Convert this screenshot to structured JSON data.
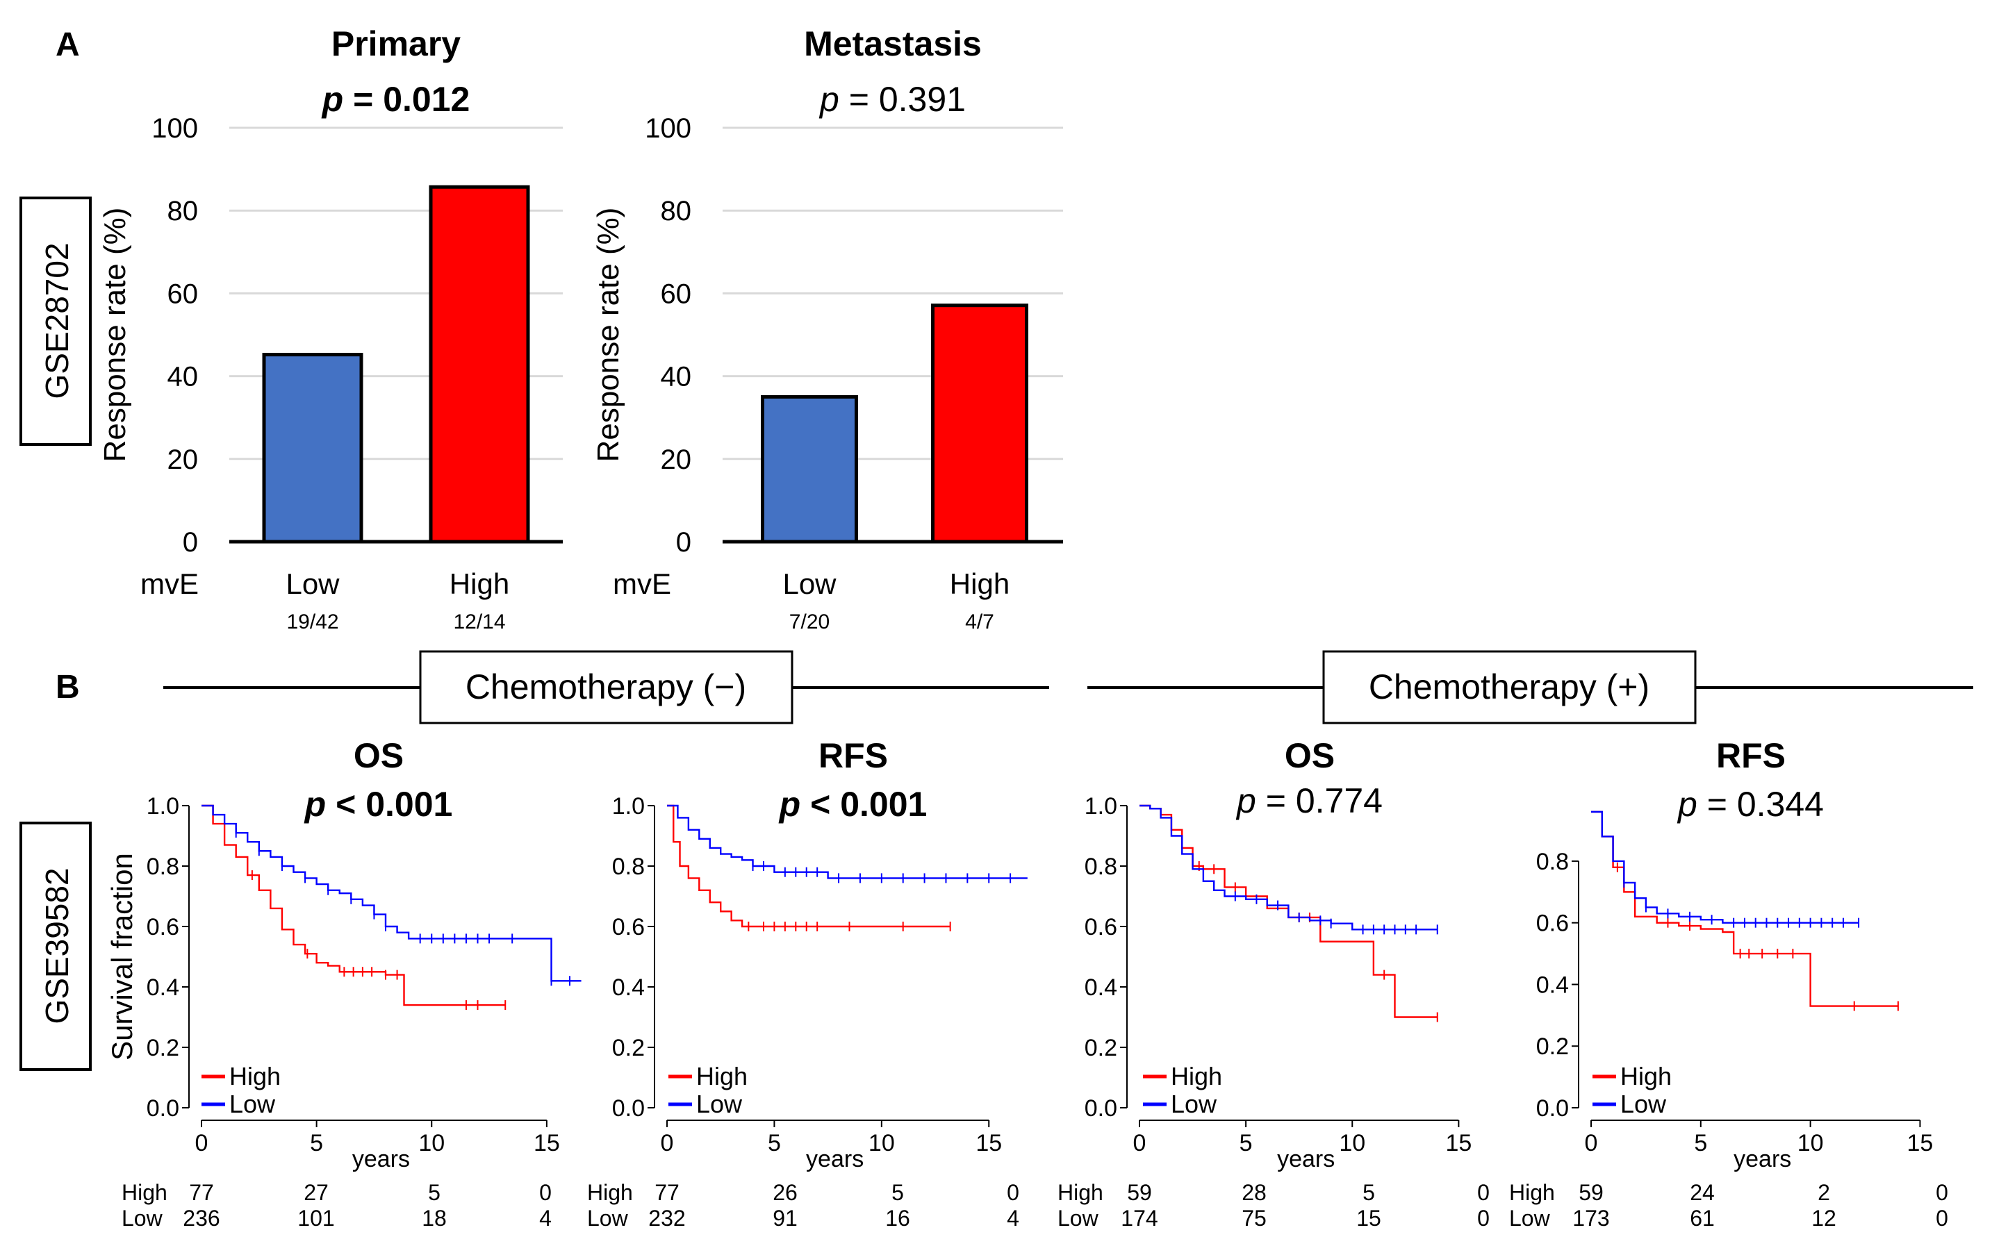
{
  "panel_a": {
    "label": "A",
    "dataset": "GSE28702",
    "group_label": "mvE"
  },
  "panel_b": {
    "label": "B",
    "dataset": "GSE39582",
    "chemo_minus": "Chemotherapy (−)",
    "chemo_plus": "Chemotherapy (+)",
    "risk_high": "High",
    "risk_low": "Low"
  },
  "chart_data": [
    {
      "id": "a1",
      "type": "bar",
      "title": "Primary",
      "p_prefix": "p",
      "p_text": " = 0.012",
      "p_bold": true,
      "ylabel": "Response rate (%)",
      "ylim": [
        0,
        100
      ],
      "yticks": [
        "0",
        "20",
        "40",
        "60",
        "80",
        "100"
      ],
      "categories": [
        "Low",
        "High"
      ],
      "fractions": [
        "19/42",
        "12/14"
      ],
      "values": [
        45.2,
        85.7
      ],
      "colors": [
        "#4472c4",
        "#ff0000"
      ]
    },
    {
      "id": "a2",
      "type": "bar",
      "title": "Metastasis",
      "p_prefix": "p",
      "p_text": " = 0.391",
      "p_bold": false,
      "ylabel": "Response rate (%)",
      "ylim": [
        0,
        100
      ],
      "yticks": [
        "0",
        "20",
        "40",
        "60",
        "80",
        "100"
      ],
      "categories": [
        "Low",
        "High"
      ],
      "fractions": [
        "7/20",
        "4/7"
      ],
      "values": [
        35.0,
        57.1
      ],
      "colors": [
        "#4472c4",
        "#ff0000"
      ]
    },
    {
      "id": "b1",
      "type": "line",
      "title": "OS",
      "p_prefix": "p",
      "p_text": " < 0.001",
      "p_bold": true,
      "ylabel": "Survival fraction",
      "xlabel": "years",
      "xlim": [
        0,
        16
      ],
      "ylim": [
        0,
        1
      ],
      "xticks": [
        "0",
        "5",
        "10",
        "15"
      ],
      "yticks": [
        "0.0",
        "0.2",
        "0.4",
        "0.6",
        "0.8",
        "1.0"
      ],
      "legend": [
        "High",
        "Low"
      ],
      "series": [
        {
          "name": "High",
          "color": "#ff0000",
          "x": [
            0,
            0.5,
            1,
            1.5,
            2,
            2.5,
            3,
            3.5,
            4,
            4.5,
            5,
            5.5,
            6,
            7,
            8,
            8.8,
            8.8,
            13.2
          ],
          "y": [
            1.0,
            0.94,
            0.87,
            0.83,
            0.77,
            0.72,
            0.66,
            0.59,
            0.54,
            0.51,
            0.48,
            0.47,
            0.45,
            0.45,
            0.44,
            0.44,
            0.34,
            0.34
          ],
          "censor_x": [
            2.2,
            4.6,
            6.2,
            6.6,
            7.0,
            7.4,
            8.0,
            8.5,
            11.5,
            12.0,
            13.2
          ]
        },
        {
          "name": "Low",
          "color": "#0000ff",
          "x": [
            0,
            0.5,
            1,
            1.5,
            2,
            2.5,
            3,
            3.5,
            4,
            4.5,
            5,
            5.5,
            6,
            6.5,
            7,
            7.5,
            8,
            8.5,
            9,
            14.5,
            15.2,
            15.2,
            16.5
          ],
          "y": [
            1.0,
            0.97,
            0.94,
            0.91,
            0.88,
            0.85,
            0.83,
            0.8,
            0.78,
            0.76,
            0.74,
            0.72,
            0.71,
            0.69,
            0.67,
            0.64,
            0.6,
            0.58,
            0.56,
            0.56,
            0.56,
            0.42,
            0.42
          ],
          "censor_x": [
            1.5,
            2.5,
            3.5,
            4.5,
            5.5,
            6.5,
            7.5,
            8.0,
            9.5,
            10.0,
            10.5,
            11.0,
            11.5,
            12.0,
            12.5,
            13.5,
            15.2,
            16.0
          ]
        }
      ],
      "risk_table": {
        "times": [
          "0",
          "5",
          "10",
          "15"
        ],
        "High": [
          "77",
          "27",
          "5",
          "0"
        ],
        "Low": [
          "236",
          "101",
          "18",
          "4"
        ]
      }
    },
    {
      "id": "b2",
      "type": "line",
      "title": "RFS",
      "p_prefix": "p",
      "p_text": " < 0.001",
      "p_bold": true,
      "ylabel": "",
      "xlabel": "years",
      "xlim": [
        0,
        17
      ],
      "ylim": [
        0,
        1
      ],
      "xticks": [
        "0",
        "5",
        "10",
        "15"
      ],
      "yticks": [
        "0.0",
        "0.2",
        "0.4",
        "0.6",
        "0.8",
        "1.0"
      ],
      "legend": [
        "High",
        "Low"
      ],
      "series": [
        {
          "name": "High",
          "color": "#ff0000",
          "x": [
            0,
            0.3,
            0.6,
            1,
            1.5,
            2,
            2.5,
            3,
            3.5,
            4,
            13.2
          ],
          "y": [
            1.0,
            0.88,
            0.8,
            0.76,
            0.72,
            0.68,
            0.65,
            0.62,
            0.6,
            0.6,
            0.6
          ],
          "censor_x": [
            3.8,
            4.5,
            5.0,
            5.5,
            6.0,
            6.5,
            7.0,
            8.5,
            11.0,
            13.2
          ]
        },
        {
          "name": "Low",
          "color": "#0000ff",
          "x": [
            0,
            0.5,
            1,
            1.5,
            2,
            2.5,
            3,
            3.5,
            4,
            5,
            7.5,
            16.8
          ],
          "y": [
            1.0,
            0.96,
            0.92,
            0.89,
            0.86,
            0.84,
            0.83,
            0.82,
            0.8,
            0.78,
            0.76,
            0.76
          ],
          "censor_x": [
            4.0,
            4.5,
            5.5,
            6.0,
            6.5,
            7.0,
            8.0,
            9.0,
            10.0,
            11.0,
            12.0,
            13.0,
            14.0,
            15.0,
            16.0
          ]
        }
      ],
      "risk_table": {
        "times": [
          "0",
          "5",
          "10",
          "15"
        ],
        "High": [
          "77",
          "26",
          "5",
          "0"
        ],
        "Low": [
          "232",
          "91",
          "16",
          "4"
        ]
      }
    },
    {
      "id": "b3",
      "type": "line",
      "title": "OS",
      "p_prefix": "p",
      "p_text": " = 0.774",
      "p_bold": false,
      "ylabel": "",
      "xlabel": "years",
      "xlim": [
        0,
        16
      ],
      "ylim": [
        0,
        1
      ],
      "xticks": [
        "0",
        "5",
        "10",
        "15"
      ],
      "yticks": [
        "0.0",
        "0.2",
        "0.4",
        "0.6",
        "0.8",
        "1.0"
      ],
      "legend": [
        "High",
        "Low"
      ],
      "series": [
        {
          "name": "High",
          "color": "#ff0000",
          "x": [
            0,
            0.5,
            1,
            1.5,
            2,
            2.5,
            3,
            3.5,
            4,
            5,
            6,
            7,
            8.5,
            8.5,
            11.0,
            11.0,
            12.0,
            12.0,
            14.0
          ],
          "y": [
            1.0,
            0.99,
            0.97,
            0.92,
            0.86,
            0.8,
            0.79,
            0.79,
            0.73,
            0.7,
            0.66,
            0.63,
            0.62,
            0.55,
            0.55,
            0.44,
            0.44,
            0.3,
            0.3
          ],
          "censor_x": [
            2.8,
            3.5,
            4.5,
            7.5,
            8.0,
            11.5,
            14.0
          ]
        },
        {
          "name": "Low",
          "color": "#0000ff",
          "x": [
            0,
            0.5,
            1,
            1.5,
            2,
            2.5,
            3,
            3.5,
            4,
            5,
            6,
            7,
            8,
            9,
            10,
            14.0
          ],
          "y": [
            1.0,
            0.99,
            0.96,
            0.9,
            0.84,
            0.79,
            0.75,
            0.72,
            0.7,
            0.69,
            0.67,
            0.63,
            0.62,
            0.61,
            0.59,
            0.59
          ],
          "censor_x": [
            4.5,
            5.5,
            6.5,
            7.5,
            8.5,
            9.0,
            10.5,
            11.0,
            11.5,
            12.0,
            12.5,
            13.0,
            14.0
          ]
        }
      ],
      "risk_table": {
        "times": [
          "0",
          "5",
          "10",
          "15"
        ],
        "High": [
          "59",
          "28",
          "5",
          "0"
        ],
        "Low": [
          "174",
          "75",
          "15",
          "0"
        ]
      }
    },
    {
      "id": "b4",
      "type": "line",
      "title": "RFS",
      "p_prefix": "p",
      "p_text": " = 0.344",
      "p_bold": false,
      "ylabel": "",
      "xlabel": "years",
      "xlim": [
        0,
        16
      ],
      "ylim": [
        0,
        0.98
      ],
      "xticks": [
        "0",
        "5",
        "10",
        "15"
      ],
      "yticks": [
        "0.0",
        "0.2",
        "0.4",
        "0.6",
        "0.8"
      ],
      "legend": [
        "High",
        "Low"
      ],
      "series": [
        {
          "name": "High",
          "color": "#ff0000",
          "x": [
            0,
            0.5,
            1,
            1.5,
            2,
            3,
            4,
            5,
            6,
            6.5,
            8,
            10,
            10,
            14.0
          ],
          "y": [
            0.96,
            0.88,
            0.78,
            0.7,
            0.62,
            0.6,
            0.59,
            0.58,
            0.57,
            0.5,
            0.5,
            0.5,
            0.33,
            0.33
          ],
          "censor_x": [
            1.2,
            3.5,
            4.5,
            6.8,
            7.2,
            7.8,
            8.5,
            9.2,
            12.0,
            14.0
          ]
        },
        {
          "name": "Low",
          "color": "#0000ff",
          "x": [
            0,
            0.5,
            1,
            1.5,
            2,
            2.5,
            3,
            4,
            5,
            6,
            12.2
          ],
          "y": [
            0.96,
            0.88,
            0.8,
            0.73,
            0.68,
            0.65,
            0.63,
            0.62,
            0.61,
            0.6,
            0.6
          ],
          "censor_x": [
            1.5,
            2.5,
            3.5,
            4.5,
            5.5,
            6.5,
            7.0,
            7.5,
            8.0,
            8.5,
            9.0,
            9.5,
            10.0,
            10.5,
            11.0,
            11.5,
            12.2
          ]
        }
      ],
      "risk_table": {
        "times": [
          "0",
          "5",
          "10",
          "15"
        ],
        "High": [
          "59",
          "24",
          "2",
          "0"
        ],
        "Low": [
          "173",
          "61",
          "12",
          "0"
        ]
      }
    }
  ]
}
